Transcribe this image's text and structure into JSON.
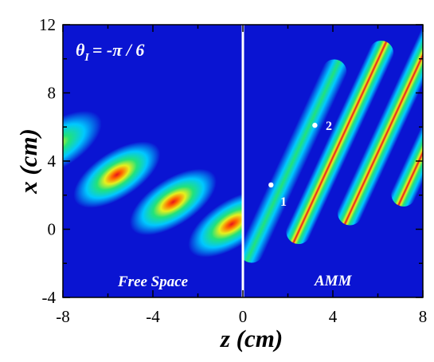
{
  "chart_data": {
    "type": "heatmap",
    "title": "",
    "xlabel": "z (cm)",
    "ylabel": "x (cm)",
    "xlim": [
      -8,
      8
    ],
    "ylim": [
      -4,
      12
    ],
    "x_ticks": [
      "-8",
      "-4",
      "0",
      "4",
      "8"
    ],
    "y_ticks": [
      "-4",
      "0",
      "4",
      "8",
      "12"
    ],
    "interface_z": 0,
    "colormap": [
      "#0a14d2",
      "#00c8ff",
      "#22e27a",
      "#e6f01e",
      "#ff6a00",
      "#e8141e"
    ],
    "background_color": "#0a14d2",
    "interface_color": "#ffffff",
    "annotations": {
      "angle_label": "θ",
      "angle_subscript": "I",
      "angle_value": "= -π / 6",
      "region_left": "Free Space",
      "region_right": "AMM",
      "marker_1": "1",
      "marker_2": "2"
    },
    "markers": [
      {
        "label": "1",
        "z": 1.25,
        "x": 2.6
      },
      {
        "label": "2",
        "z": 3.2,
        "x": 6.1
      }
    ],
    "series": [
      {
        "region": "free space",
        "blobs": [
          {
            "z": -8.2,
            "x": 5.0,
            "peak": 0.9
          },
          {
            "z": -5.6,
            "x": 3.2,
            "peak": 1.0
          },
          {
            "z": -3.1,
            "x": 1.6,
            "peak": 1.0
          },
          {
            "z": -0.5,
            "x": 0.3,
            "peak": 1.0
          }
        ]
      },
      {
        "region": "AMM",
        "beams": [
          {
            "z0": 0.3,
            "peak": 0.55
          },
          {
            "z0": 2.0,
            "peak": 1.0
          },
          {
            "z0": 3.9,
            "peak": 1.0
          },
          {
            "z0": 5.9,
            "peak": 0.95
          },
          {
            "z0": 7.8,
            "peak": 0.55
          }
        ]
      }
    ]
  }
}
